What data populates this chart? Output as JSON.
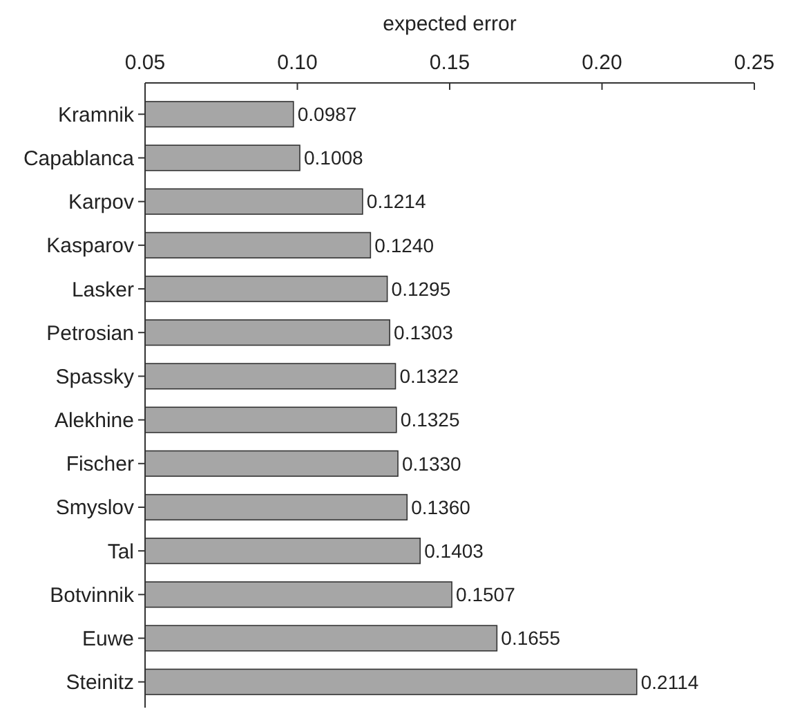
{
  "chart_data": {
    "type": "bar",
    "orientation": "horizontal",
    "xlabel": "expected error",
    "categories": [
      "Kramnik",
      "Capablanca",
      "Karpov",
      "Kasparov",
      "Lasker",
      "Petrosian",
      "Spassky",
      "Alekhine",
      "Fischer",
      "Smyslov",
      "Tal",
      "Botvinnik",
      "Euwe",
      "Steinitz"
    ],
    "values": [
      0.0987,
      0.1008,
      0.1214,
      0.124,
      0.1295,
      0.1303,
      0.1322,
      0.1325,
      0.133,
      0.136,
      0.1403,
      0.1507,
      0.1655,
      0.2114
    ],
    "value_labels": [
      "0.0987",
      "0.1008",
      "0.1214",
      "0.1240",
      "0.1295",
      "0.1303",
      "0.1322",
      "0.1325",
      "0.1330",
      "0.1360",
      "0.1403",
      "0.1507",
      "0.1655",
      "0.2114"
    ],
    "color": "#a6a6a6",
    "xlim": [
      0.05,
      0.25
    ],
    "xticks": [
      0.05,
      {
        "value": 0.1,
        "label": "0.10"
      },
      0.15,
      {
        "value": 0.2,
        "label": "0.20"
      },
      0.25
    ],
    "grid": false
  }
}
